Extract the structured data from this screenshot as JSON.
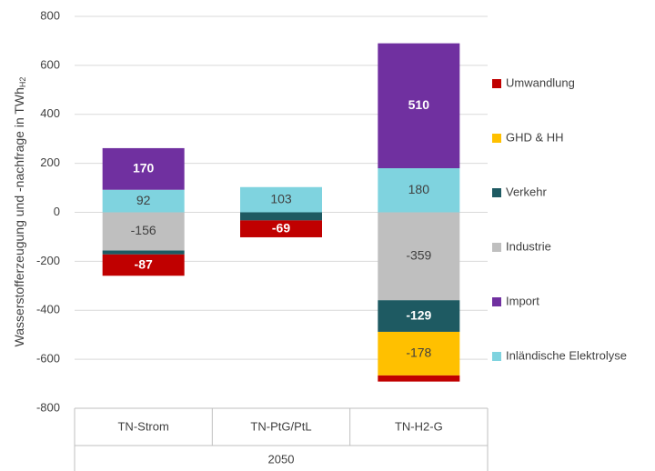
{
  "chart_data": {
    "type": "stacked_bar",
    "y_label": "Wasserstofferzeugung und -nachfrage in TWh",
    "y_label_sub": "H2",
    "categories": [
      "TN-Strom",
      "TN-PtG/PtL",
      "TN-H2-G"
    ],
    "group_label": "2050",
    "series": [
      {
        "name": "Umwandlung",
        "color": "#c00000",
        "label_color": "#ffffff",
        "values": [
          -87,
          -69,
          -25
        ]
      },
      {
        "name": "GHD & HH",
        "color": "#ffc000",
        "label_color": "#404040",
        "values": [
          0,
          0,
          -178
        ]
      },
      {
        "name": "Verkehr",
        "color": "#1e5a62",
        "label_color": "#ffffff",
        "values": [
          -16,
          -33,
          -129
        ]
      },
      {
        "name": "Industrie",
        "color": "#bfbfbf",
        "label_color": "#404040",
        "values": [
          -156,
          0,
          -359
        ]
      },
      {
        "name": "Import",
        "color": "#7030a0",
        "label_color": "#ffffff",
        "values": [
          170,
          0,
          510
        ]
      },
      {
        "name": "Inländische Elektrolyse",
        "color": "#7fd3df",
        "label_color": "#404040",
        "values": [
          92,
          103,
          180
        ]
      }
    ],
    "ylim": [
      -800,
      800
    ],
    "yticks": [
      -800,
      -600,
      -400,
      -200,
      0,
      200,
      400,
      600,
      800
    ],
    "grid": true
  }
}
